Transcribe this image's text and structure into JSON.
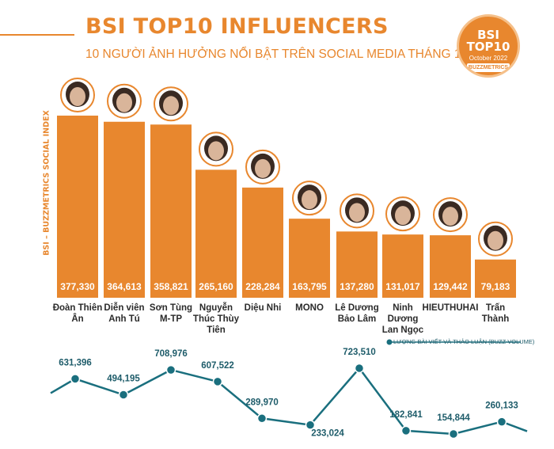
{
  "header": {
    "title": "BSI TOP10 INFLUENCERS",
    "subtitle": "10 NGƯỜI ẢNH HƯỞNG NỔI BẬT TRÊN SOCIAL MEDIA THÁNG 10/2022"
  },
  "badge": {
    "line1": "BSI",
    "line2": "TOP10",
    "line3": "October 2022",
    "brand": "BUZZMETRICS"
  },
  "colors": {
    "accent": "#e8872e",
    "line": "#1a6f7e"
  },
  "chart_data": [
    {
      "type": "bar",
      "title": "BSI TOP10 INFLUENCERS",
      "ylabel": "BSI – BUZZMETRICS SOCIAL INDEX",
      "ylim": [
        0,
        400000
      ],
      "categories": [
        [
          "Đoàn Thiên",
          "Ân"
        ],
        [
          "Diễn viên",
          "Anh Tú"
        ],
        [
          "Sơn Tùng",
          "M-TP"
        ],
        [
          "Nguyễn",
          "Thúc Thùy",
          "Tiên"
        ],
        [
          "Diệu Nhi"
        ],
        [
          "MONO"
        ],
        [
          "Lê Dương",
          "Bảo Lâm"
        ],
        [
          "Ninh",
          "Dương",
          "Lan Ngọc"
        ],
        [
          "HIEUTHUHAI"
        ],
        [
          "Trấn",
          "Thành"
        ]
      ],
      "values": [
        377330,
        364613,
        358821,
        265160,
        228284,
        163795,
        137280,
        131017,
        129442,
        79183
      ],
      "value_labels": [
        "377,330",
        "364,613",
        "358,821",
        "265,160",
        "228,284",
        "163,795",
        "137,280",
        "131,017",
        "129,442",
        "79,183"
      ],
      "grid": false
    },
    {
      "type": "line",
      "series": [
        {
          "name": "LƯỢNG BÀI VIẾT VÀ THẢO LUẬN (BUZZ VOLUME)",
          "values": [
            631396,
            494195,
            708976,
            607522,
            289970,
            233024,
            723510,
            182841,
            154844,
            260133
          ],
          "value_labels": [
            "631,396",
            "494,195",
            "708,976",
            "607,522",
            "289,970",
            "233,024",
            "723,510",
            "182,841",
            "154,844",
            "260,133"
          ]
        }
      ],
      "legend": "top-right",
      "grid": false
    }
  ]
}
